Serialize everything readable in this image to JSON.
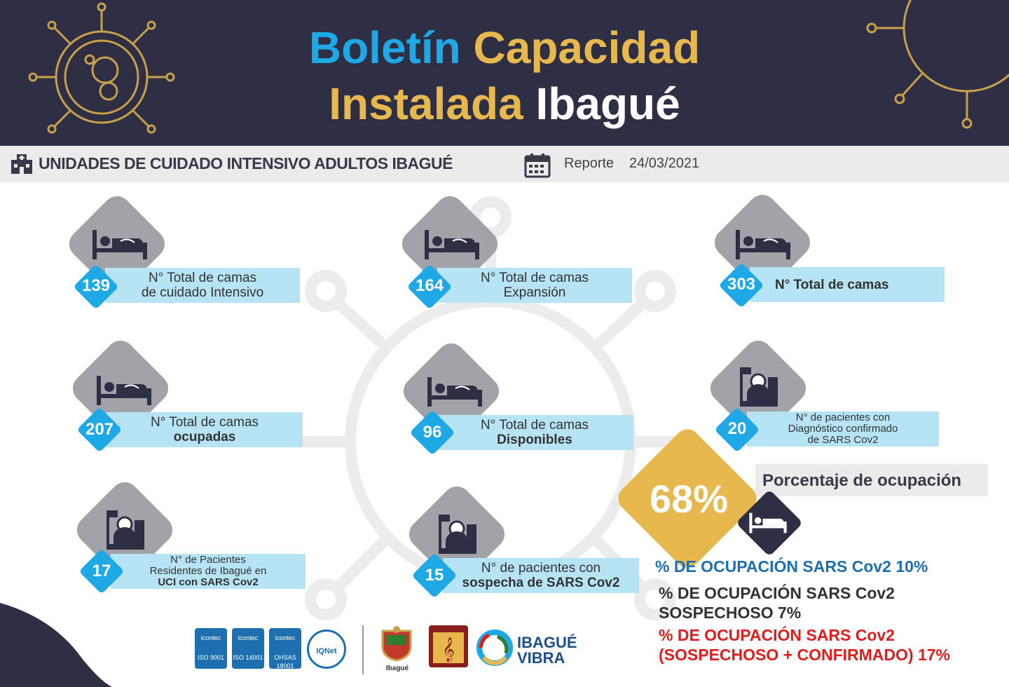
{
  "header": {
    "title_word1": "Boletín",
    "title_word2": "Capacidad",
    "title_word3": "Instalada",
    "title_word4": "Ibagué"
  },
  "subheader": {
    "title": "UNIDADES DE CUIDADO INTENSIVO ADULTOS IBAGUÉ",
    "report_label": "Reporte",
    "report_date": "24/03/2021"
  },
  "cards": [
    {
      "value": "139",
      "line1": "N° Total  de camas",
      "line2": "de cuidado Intensivo",
      "icon": "bed-icon"
    },
    {
      "value": "164",
      "line1": "N° Total  de camas",
      "line2": "Expansión",
      "icon": "bed-icon"
    },
    {
      "value": "303",
      "line1": "N° Total  de camas",
      "line2": "",
      "icon": "bed-icon"
    },
    {
      "value": "207",
      "line1": "N° Total  de camas",
      "line2": "ocupadas",
      "icon": "bed-icon"
    },
    {
      "value": "96",
      "line1": "N° Total  de camas",
      "line2": "Disponibles",
      "icon": "bed-icon"
    },
    {
      "value": "20",
      "line1": "N° de pacientes con",
      "line2": "Diagnóstico confirmado",
      "line3": "de SARS Cov2",
      "icon": "patient-icon"
    },
    {
      "value": "17",
      "line1": "N° de Pacientes",
      "line2": "Residentes  de Ibagué en",
      "line3": "UCI con SARS Cov2",
      "icon": "patient-icon"
    },
    {
      "value": "15",
      "line1": "N° de pacientes con",
      "line2": "sospecha de SARS Cov2",
      "icon": "patient-icon"
    }
  ],
  "occupancy": {
    "value": "68%",
    "label": "Porcentaje  de ocupación",
    "stat1": "% DE OCUPACIÓN SARS Cov2 10%",
    "stat2_line1": "% DE OCUPACIÓN SARS Cov2",
    "stat2_line2": "SOSPECHOSO 7%",
    "stat3_line1": "% DE OCUPACIÓN SARS Cov2",
    "stat3_line2": "(SOSPECHOSO + CONFIRMADO)  17%"
  },
  "footer": {
    "icontec1": "ISO 9001",
    "icontec2": "ISO 14001",
    "icontec3": "OHSAS 18001",
    "icontec_brand": "icontec",
    "iqnet": "IQNet",
    "alcaldia": "Ibagué",
    "vibra_line1": "IBAGUÉ",
    "vibra_line2": "VIBRA"
  },
  "colors": {
    "header_bg": "#2e2f45",
    "blue": "#1ea8e6",
    "gold": "#e6b84d",
    "label_bg": "#b6e4f4",
    "red": "#e41b1b",
    "stat_blue": "#1e6fb0"
  }
}
